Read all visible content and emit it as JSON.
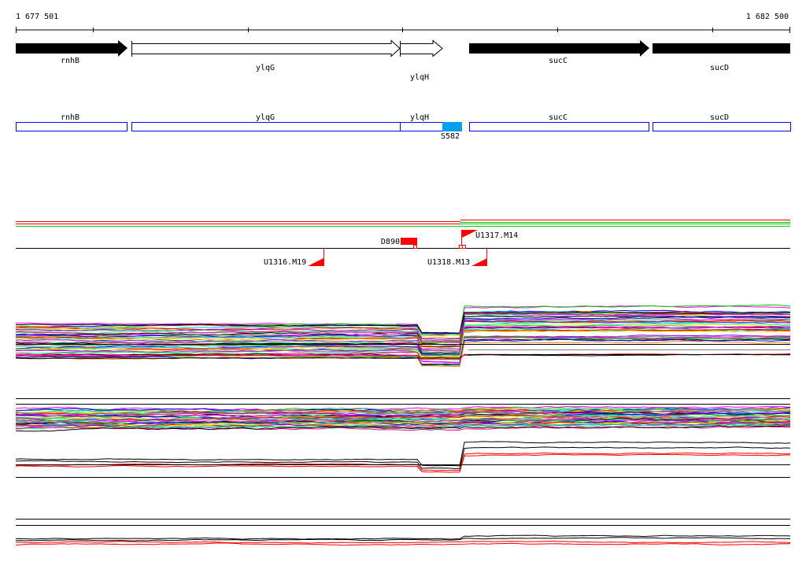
{
  "ruler": {
    "start_label": "1 677 501",
    "end_label": "1 682 500"
  },
  "genes": [
    {
      "name": "rnhB",
      "strand_fill": "black"
    },
    {
      "name": "ylqG",
      "strand_fill": "white"
    },
    {
      "name": "ylqH",
      "strand_fill": "white"
    },
    {
      "name": "sucC",
      "strand_fill": "black"
    },
    {
      "name": "sucD",
      "strand_fill": "black"
    }
  ],
  "annotation_boxes": [
    {
      "name": "rnhB"
    },
    {
      "name": "ylqG"
    },
    {
      "name": "ylqH"
    },
    {
      "name": "sucC"
    },
    {
      "name": "sucD"
    }
  ],
  "highlight": {
    "label": "S582",
    "color": "#00a0f0"
  },
  "features": {
    "d890": "D890",
    "u1317": "U1317.M14",
    "u1316": "U1316.M19",
    "u1318": "U1318.M13"
  },
  "colors": {
    "box_outline": "#0000ff",
    "feature": "#ff0000",
    "green": "#00cc00"
  }
}
